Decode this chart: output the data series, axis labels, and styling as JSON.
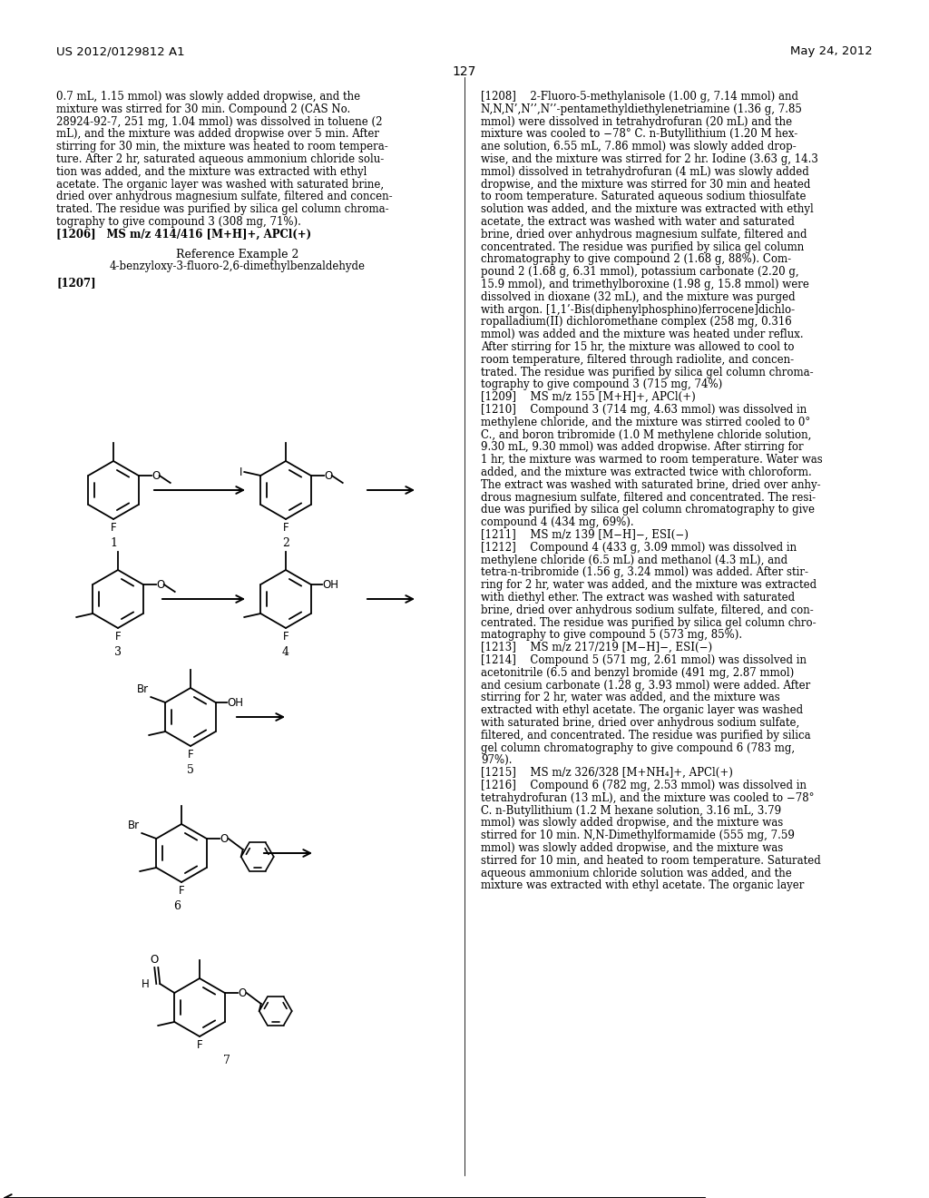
{
  "page_number": "127",
  "patent_number": "US 2012/0129812 A1",
  "patent_date": "May 24, 2012",
  "background_color": "#ffffff",
  "text_color": "#000000",
  "left_col_lines": [
    "0.7 mL, 1.15 mmol) was slowly added dropwise, and the",
    "mixture was stirred for 30 min. Compound 2 (CAS No.",
    "28924-92-7, 251 mg, 1.04 mmol) was dissolved in toluene (2",
    "mL), and the mixture was added dropwise over 5 min. After",
    "stirring for 30 min, the mixture was heated to room tempera-",
    "ture. After 2 hr, saturated aqueous ammonium chloride solu-",
    "tion was added, and the mixture was extracted with ethyl",
    "acetate. The organic layer was washed with saturated brine,",
    "dried over anhydrous magnesium sulfate, filtered and concen-",
    "trated. The residue was purified by silica gel column chroma-",
    "tography to give compound 3 (308 mg, 71%).",
    "[1206] MS m/z 414/416 [M+H]+, APCl(+)"
  ],
  "right_col_lines": [
    "[1208]  2-Fluoro-5-methylanisole (1.00 g, 7.14 mmol) and",
    "N,N,N’,N’’,N’’-pentamethyldiethylenetriamine (1.36 g, 7.85",
    "mmol) were dissolved in tetrahydrofuran (20 mL) and the",
    "mixture was cooled to −78° C. n-Butyllithium (1.20 M hex-",
    "ane solution, 6.55 mL, 7.86 mmol) was slowly added drop-",
    "wise, and the mixture was stirred for 2 hr. Iodine (3.63 g, 14.3",
    "mmol) dissolved in tetrahydrofuran (4 mL) was slowly added",
    "dropwise, and the mixture was stirred for 30 min and heated",
    "to room temperature. Saturated aqueous sodium thiosulfate",
    "solution was added, and the mixture was extracted with ethyl",
    "acetate, the extract was washed with water and saturated",
    "brine, dried over anhydrous magnesium sulfate, filtered and",
    "concentrated. The residue was purified by silica gel column",
    "chromatography to give compound 2 (1.68 g, 88%). Com-",
    "pound 2 (1.68 g, 6.31 mmol), potassium carbonate (2.20 g,",
    "15.9 mmol), and trimethylboroxine (1.98 g, 15.8 mmol) were",
    "dissolved in dioxane (32 mL), and the mixture was purged",
    "with argon. [1,1’-Bis(diphenylphosphino)ferrocene]dichlo-",
    "ropalladium(II) dichloromethane complex (258 mg, 0.316",
    "mmol) was added and the mixture was heated under reflux.",
    "After stirring for 15 hr, the mixture was allowed to cool to",
    "room temperature, filtered through radiolite, and concen-",
    "trated. The residue was purified by silica gel column chroma-",
    "tography to give compound 3 (715 mg, 74%)",
    "[1209]  MS m/z 155 [M+H]+, APCl(+)",
    "[1210]  Compound 3 (714 mg, 4.63 mmol) was dissolved in",
    "methylene chloride, and the mixture was stirred cooled to 0°",
    "C., and boron tribromide (1.0 M methylene chloride solution,",
    "9.30 mL, 9.30 mmol) was added dropwise. After stirring for",
    "1 hr, the mixture was warmed to room temperature. Water was",
    "added, and the mixture was extracted twice with chloroform.",
    "The extract was washed with saturated brine, dried over anhy-",
    "drous magnesium sulfate, filtered and concentrated. The resi-",
    "due was purified by silica gel column chromatography to give",
    "compound 4 (434 mg, 69%).",
    "[1211]  MS m/z 139 [M−H]−, ESI(−)",
    "[1212]  Compound 4 (433 g, 3.09 mmol) was dissolved in",
    "methylene chloride (6.5 mL) and methanol (4.3 mL), and",
    "tetra-n-tribromide (1.56 g, 3.24 mmol) was added. After stir-",
    "ring for 2 hr, water was added, and the mixture was extracted",
    "with diethyl ether. The extract was washed with saturated",
    "brine, dried over anhydrous sodium sulfate, filtered, and con-",
    "centrated. The residue was purified by silica gel column chro-",
    "matography to give compound 5 (573 mg, 85%).",
    "[1213]  MS m/z 217/219 [M−H]−, ESI(−)",
    "[1214]  Compound 5 (571 mg, 2.61 mmol) was dissolved in",
    "acetonitrile (6.5 and benzyl bromide (491 mg, 2.87 mmol)",
    "and cesium carbonate (1.28 g, 3.93 mmol) were added. After",
    "stirring for 2 hr, water was added, and the mixture was",
    "extracted with ethyl acetate. The organic layer was washed",
    "with saturated brine, dried over anhydrous sodium sulfate,",
    "filtered, and concentrated. The residue was purified by silica",
    "gel column chromatography to give compound 6 (783 mg,",
    "97%).",
    "[1215]  MS m/z 326/328 [M+NH₄]+, APCl(+)",
    "[1216]  Compound 6 (782 mg, 2.53 mmol) was dissolved in",
    "tetrahydrofuran (13 mL), and the mixture was cooled to −78°",
    "C. n-Butyllithium (1.2 M hexane solution, 3.16 mL, 3.79",
    "mmol) was slowly added dropwise, and the mixture was",
    "stirred for 10 min. N,N-Dimethylformamide (555 mg, 7.59",
    "mmol) was slowly added dropwise, and the mixture was",
    "stirred for 10 min, and heated to room temperature. Saturated",
    "aqueous ammonium chloride solution was added, and the",
    "mixture was extracted with ethyl acetate. The organic layer"
  ]
}
